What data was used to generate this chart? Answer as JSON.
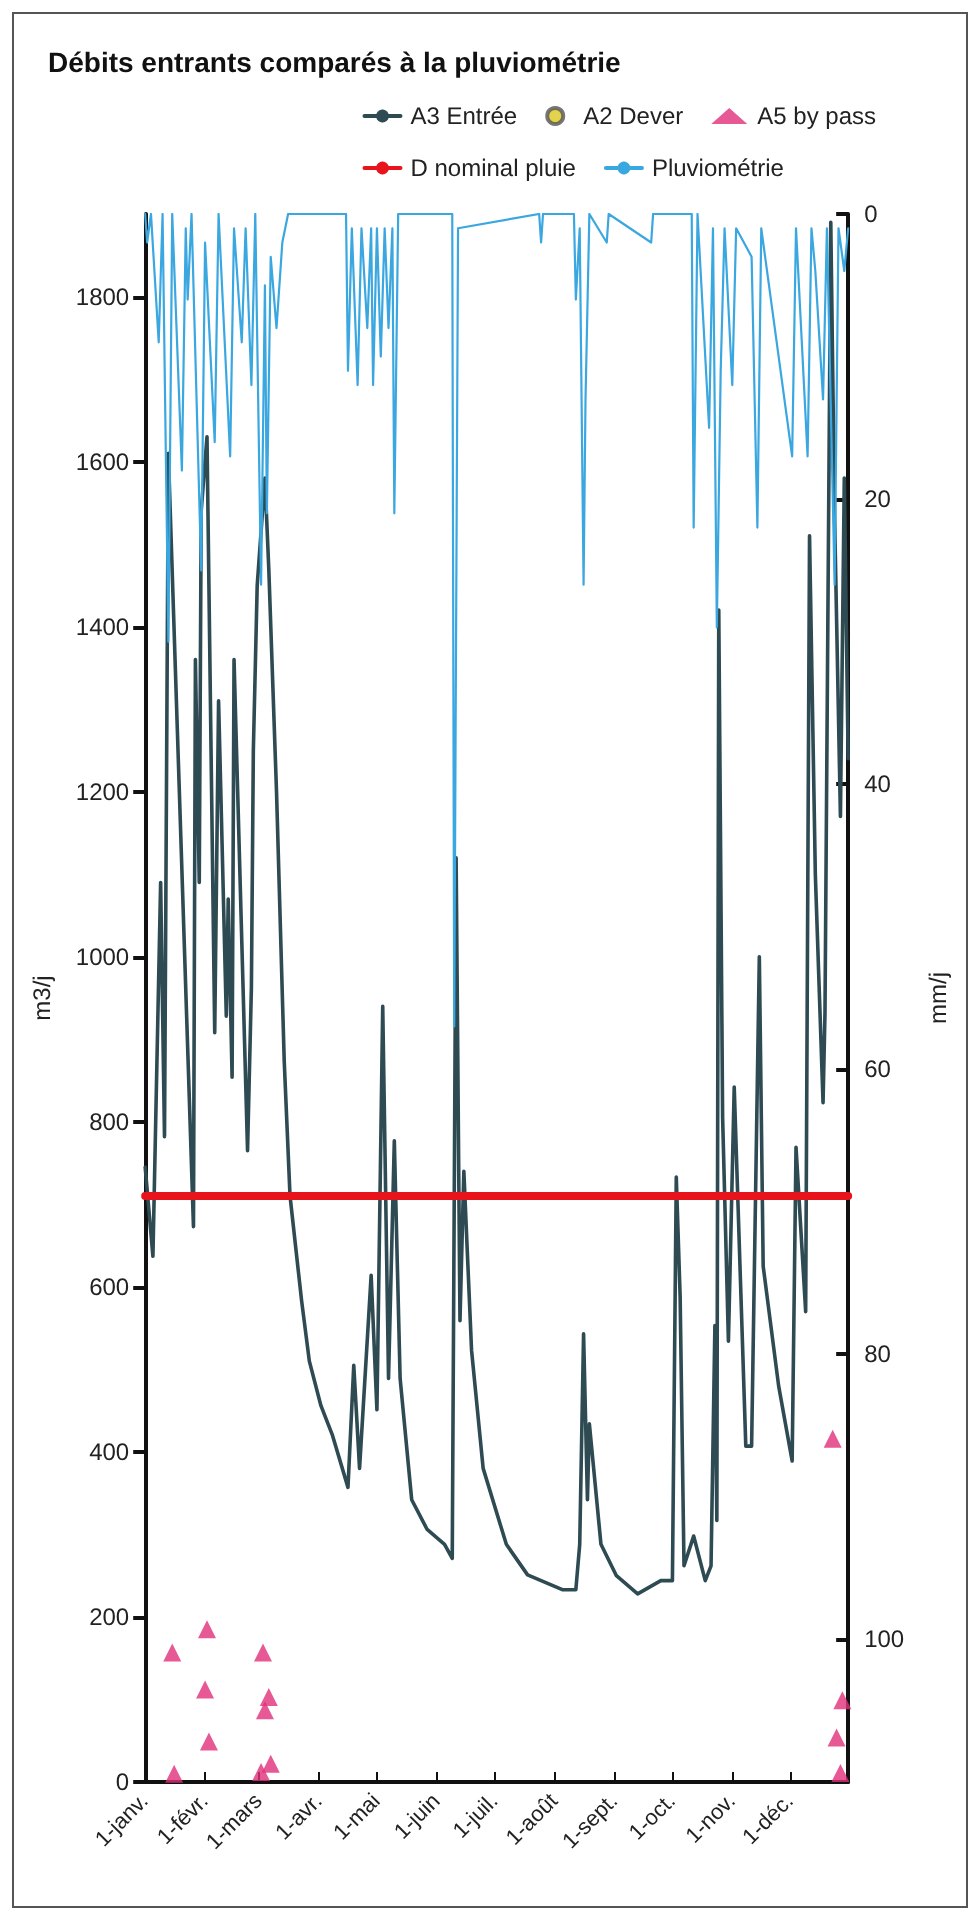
{
  "chart_data": {
    "type": "line",
    "title": "Débits entrants comparés à la pluviométrie",
    "ylabel": "m3/j",
    "y2label": "mm/j",
    "xlim": [
      "--01-01",
      "--12-31"
    ],
    "xticks": [
      {
        "value": "--01-01",
        "label": "1-janv."
      },
      {
        "value": "--02-01",
        "label": "1-févr."
      },
      {
        "value": "--03-01",
        "label": "1-mars"
      },
      {
        "value": "--04-01",
        "label": "1-avr."
      },
      {
        "value": "--05-01",
        "label": "1-mai"
      },
      {
        "value": "--06-01",
        "label": "1-juin"
      },
      {
        "value": "--07-01",
        "label": "1-juil."
      },
      {
        "value": "--08-01",
        "label": "1-août"
      },
      {
        "value": "--09-01",
        "label": "1-sept."
      },
      {
        "value": "--10-01",
        "label": "1-oct."
      },
      {
        "value": "--11-01",
        "label": "1-nov."
      },
      {
        "value": "--12-01",
        "label": "1-déc."
      }
    ],
    "ylim": [
      0,
      1900
    ],
    "yticks": [
      0,
      200,
      400,
      600,
      800,
      1000,
      1200,
      1400,
      1600,
      1800
    ],
    "y2lim": [
      110,
      0
    ],
    "y2ticks": [
      0,
      20,
      40,
      60,
      80,
      100
    ],
    "grid": false,
    "legend": "top right",
    "marker": "none",
    "series": [
      {
        "name": "A3 Entrée",
        "color": "#2e4a52",
        "x": [
          "--01-01",
          "--01-05",
          "--01-09",
          "--01-11",
          "--01-13",
          "--01-26",
          "--01-27",
          "--01-29",
          "--01-30",
          "--02-02",
          "--02-06",
          "--02-08",
          "--02-12",
          "--02-13",
          "--02-15",
          "--02-16",
          "--02-23",
          "--02-25",
          "--02-26",
          "--02-28",
          "--03-04",
          "--03-06",
          "--03-10",
          "--03-14",
          "--03-17",
          "--03-23",
          "--03-27",
          "--04-02",
          "--04-08",
          "--04-16",
          "--04-19",
          "--04-22",
          "--04-28",
          "--05-01",
          "--05-04",
          "--05-07",
          "--05-10",
          "--05-13",
          "--05-19",
          "--05-27",
          "--06-05",
          "--06-09",
          "--06-11",
          "--06-13",
          "--06-15",
          "--06-19",
          "--06-25",
          "--07-07",
          "--07-18",
          "--08-05",
          "--08-12",
          "--08-14",
          "--08-16",
          "--08-18",
          "--08-19",
          "--08-25",
          "--09-02",
          "--09-13",
          "--09-25",
          "--10-01",
          "--10-03",
          "--10-05",
          "--10-07",
          "--10-12",
          "--10-18",
          "--10-21",
          "--10-23",
          "--10-24",
          "--10-25",
          "--10-27",
          "--10-30",
          "--11-02",
          "--11-04",
          "--11-08",
          "--11-11",
          "--11-15",
          "--11-17",
          "--11-25",
          "--12-02",
          "--12-04",
          "--12-09",
          "--12-11",
          "--12-14",
          "--12-18",
          "--12-19",
          "--12-22",
          "--12-24",
          "--12-27",
          "--12-29",
          "--12-31"
        ],
        "values": [
          745,
          637,
          1090,
          782,
          1610,
          673,
          1360,
          1090,
          1540,
          1630,
          908,
          1310,
          928,
          1070,
          854,
          1360,
          765,
          963,
          1250,
          1450,
          1580,
          1470,
          1200,
          873,
          710,
          583,
          510,
          456,
          420,
          357,
          505,
          380,
          614,
          451,
          940,
          489,
          777,
          489,
          342,
          306,
          288,
          271,
          1120,
          559,
          740,
          523,
          380,
          288,
          251,
          233,
          233,
          288,
          543,
          342,
          434,
          288,
          250,
          228,
          244,
          244,
          733,
          588,
          262,
          298,
          244,
          262,
          553,
          317,
          1420,
          805,
          534,
          842,
          697,
          407,
          407,
          1000,
          625,
          480,
          389,
          769,
          570,
          1510,
          1100,
          823,
          932,
          1890,
          1530,
          1170,
          1580,
          1240
        ]
      },
      {
        "name": "A2 Dever",
        "type": "scatter",
        "color": "#d9c81e",
        "marker": "circle"
      },
      {
        "name": "A5 by pass",
        "type": "scatter",
        "color": "#e0307a",
        "marker": "triangle",
        "x": [
          "--01-15",
          "--01-16",
          "--02-02",
          "--02-01",
          "--02-03",
          "--03-03",
          "--03-06",
          "--03-04",
          "--03-07",
          "--03-02",
          "--12-23",
          "--12-28",
          "--12-25",
          "--12-27"
        ],
        "values": [
          157,
          10,
          185,
          112,
          49,
          157,
          103,
          87,
          22,
          12,
          416,
          99,
          54,
          11
        ]
      },
      {
        "name": "D nominal pluie",
        "color": "#e8141c",
        "x": [
          "--01-01",
          "--12-31"
        ],
        "values": [
          710,
          710
        ]
      },
      {
        "name": "Pluviométrie",
        "axis": "y2",
        "color": "#3aa7e0",
        "x": [
          "--01-01",
          "--01-02",
          "--01-04",
          "--01-08",
          "--01-10",
          "--01-13",
          "--01-15",
          "--01-20",
          "--01-22",
          "--01-23",
          "--01-25",
          "--01-30",
          "--02-01",
          "--02-06",
          "--02-08",
          "--02-14",
          "--02-16",
          "--02-20",
          "--02-22",
          "--02-25",
          "--02-27",
          "--03-02",
          "--03-04",
          "--03-05",
          "--03-07",
          "--03-10",
          "--03-13",
          "--03-16",
          "--04-15",
          "--04-16",
          "--04-18",
          "--04-21",
          "--04-23",
          "--04-26",
          "--04-28",
          "--04-29",
          "--05-01",
          "--05-03",
          "--05-05",
          "--05-07",
          "--05-09",
          "--05-10",
          "--05-12",
          "--06-09",
          "--06-10",
          "--06-12",
          "--07-24",
          "--07-25",
          "--07-26",
          "--08-11",
          "--08-12",
          "--08-14",
          "--08-16",
          "--08-17",
          "--08-19",
          "--08-28",
          "--08-29",
          "--09-20",
          "--09-21",
          "--10-11",
          "--10-12",
          "--10-14",
          "--10-20",
          "--10-22",
          "--10-24",
          "--10-26",
          "--10-28",
          "--11-01",
          "--11-03",
          "--11-11",
          "--11-14",
          "--11-16",
          "--12-02",
          "--12-04",
          "--12-10",
          "--12-12",
          "--12-14",
          "--12-18",
          "--12-20",
          "--12-24",
          "--12-26",
          "--12-29",
          "--12-31"
        ],
        "values": [
          0,
          2,
          0,
          9,
          0,
          30,
          0,
          18,
          1,
          6,
          0,
          25,
          2,
          16,
          0,
          17,
          1,
          9,
          1,
          12,
          0,
          26,
          5,
          21,
          3,
          8,
          2,
          0,
          0,
          11,
          1,
          12,
          1,
          8,
          1,
          12,
          1,
          10,
          1,
          8,
          1,
          21,
          0,
          0,
          57,
          1,
          0,
          2,
          0,
          0,
          6,
          1,
          26,
          13,
          0,
          2,
          0,
          2,
          0,
          0,
          22,
          0,
          15,
          1,
          29,
          11,
          1,
          12,
          1,
          3,
          22,
          1,
          17,
          1,
          17,
          1,
          4,
          13,
          1,
          26,
          1,
          4,
          1
        ]
      }
    ]
  }
}
